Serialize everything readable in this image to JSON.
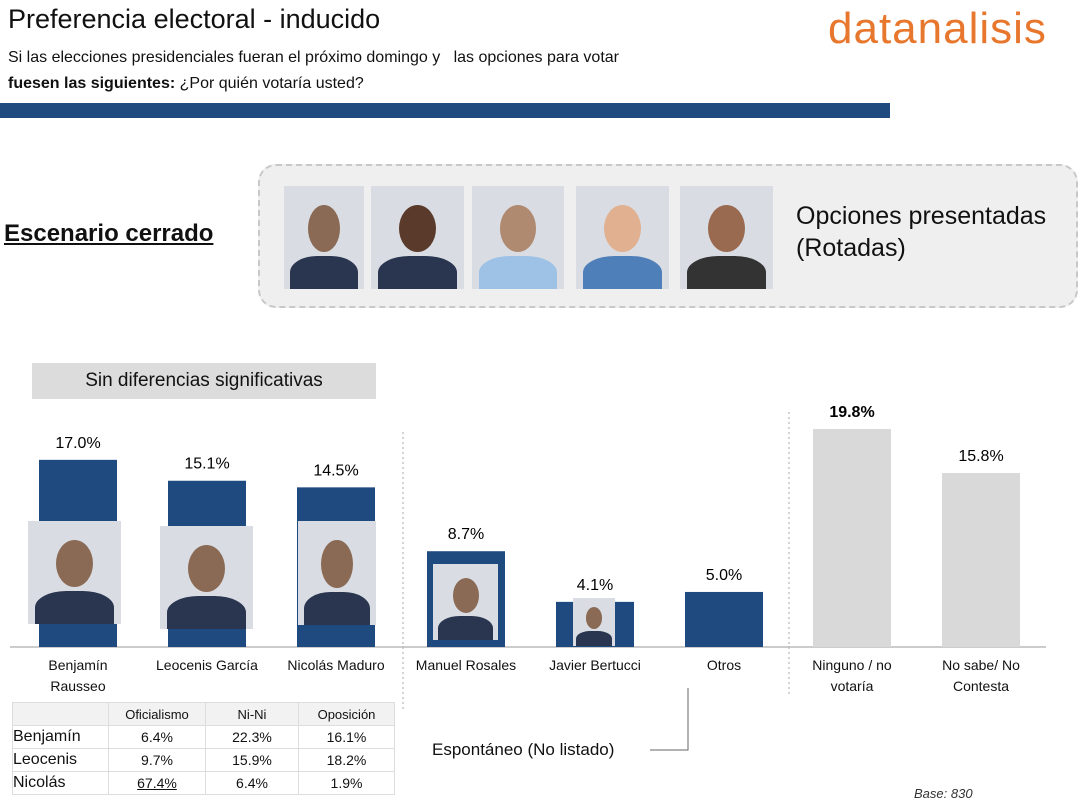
{
  "header": {
    "title": "Preferencia electoral - inducido",
    "subtitle_1": "Si las elecciones presidenciales fueran el próximo domingo y   las opciones para votar",
    "subtitle_2_bold": "fuesen las siguientes:",
    "subtitle_2": "¿Por quién votaría usted?",
    "logo": "datanalisis"
  },
  "scenario": "Escenario cerrado",
  "options_1": "Opciones presentadas",
  "options_2": "(Rotadas)",
  "note": "Sin diferencias significativas",
  "chart_data": {
    "type": "bar",
    "categories": [
      "Benjamín Rausseo",
      "Leocenis García",
      "Nicolás Maduro",
      "Manuel Rosales",
      "Javier Bertucci",
      "Otros",
      "Ninguno / no votaría",
      "No sabe/ No Contesta"
    ],
    "values": [
      17.0,
      15.1,
      14.5,
      8.7,
      4.1,
      5.0,
      19.8,
      15.8
    ],
    "value_labels": [
      "17.0%",
      "15.1%",
      "14.5%",
      "8.7%",
      "4.1%",
      "5.0%",
      "19.8%",
      "15.8%"
    ],
    "colors": [
      "#1f4a80",
      "#1f4a80",
      "#1f4a80",
      "#1f4a80",
      "#1f4a80",
      "#1f4a80",
      "#d9d9d9",
      "#d9d9d9"
    ],
    "annotation": "Espontáneo (No listado)",
    "base": "Base: 830"
  },
  "table": {
    "columns": [
      "Oficialismo",
      "Ni-Ni",
      "Oposición"
    ],
    "rows": [
      [
        "Benjamín",
        "6.4%",
        "22.3%",
        "16.1%"
      ],
      [
        "Leocenis",
        "9.7%",
        "15.9%",
        "18.2%"
      ],
      [
        "Nicolás",
        "67.4%",
        "6.4%",
        "1.9%"
      ]
    ]
  }
}
